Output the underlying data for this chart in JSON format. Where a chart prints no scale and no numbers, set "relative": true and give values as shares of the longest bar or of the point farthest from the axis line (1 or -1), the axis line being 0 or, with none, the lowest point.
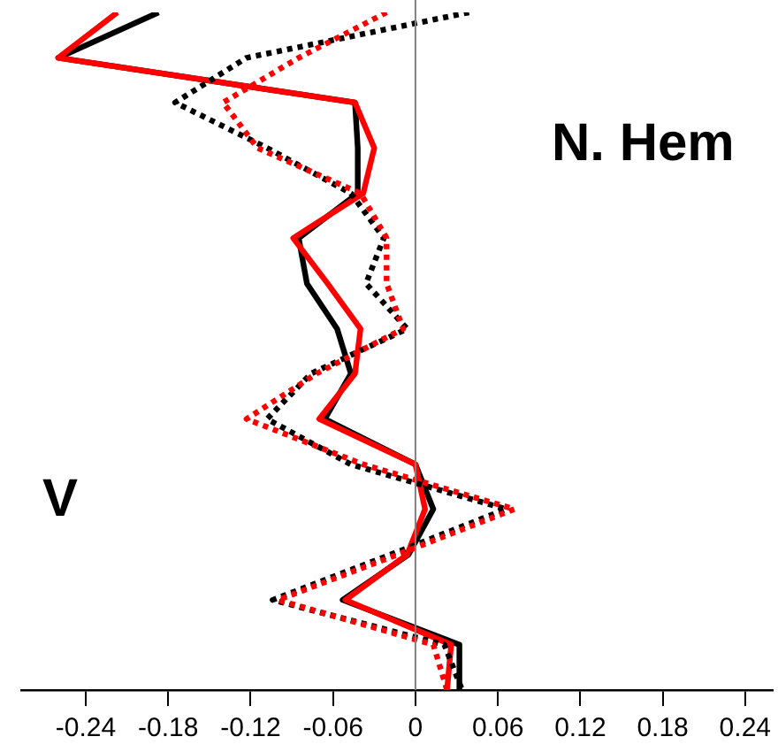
{
  "chart_data": {
    "type": "line",
    "relative": true,
    "xlim": [
      -0.287,
      0.26
    ],
    "xticks": [
      -0.24,
      -0.18,
      -0.12,
      -0.06,
      0,
      0.06,
      0.12,
      0.18,
      0.24
    ],
    "ref_lines": [
      {
        "axis": "x",
        "value": 0,
        "color": "#808080"
      }
    ],
    "annotations": [
      "N. Hem",
      "V"
    ],
    "series": [
      {
        "color": "#ff0000",
        "line_style": "dotted",
        "x": [
          -0.021,
          -0.085,
          -0.14,
          -0.115,
          -0.04,
          -0.021,
          -0.021,
          -0.009,
          -0.072,
          -0.123,
          -0.038,
          0.072,
          -0.013,
          -0.1,
          0.013,
          0.023
        ],
        "values": [
          1,
          0.933,
          0.867,
          0.8,
          0.733,
          0.667,
          0.6,
          0.533,
          0.467,
          0.4,
          0.333,
          0.267,
          0.2,
          0.133,
          0.067,
          0
        ]
      },
      {
        "color": "#000000",
        "line_style": "dotted",
        "x": [
          0.039,
          -0.123,
          -0.175,
          -0.108,
          -0.047,
          -0.023,
          -0.036,
          -0.006,
          -0.076,
          -0.108,
          -0.047,
          0.066,
          -0.018,
          -0.104,
          0.021,
          0.034
        ],
        "values": [
          1,
          0.933,
          0.867,
          0.8,
          0.733,
          0.667,
          0.6,
          0.533,
          0.467,
          0.4,
          0.333,
          0.267,
          0.2,
          0.133,
          0.067,
          0
        ]
      },
      {
        "color": "#ff0000",
        "line_style": "solid",
        "x": [
          -0.217,
          -0.26,
          -0.044,
          -0.03,
          -0.038,
          -0.089,
          -0.064,
          -0.04,
          -0.044,
          -0.07,
          0.0,
          0.007,
          -0.006,
          -0.051,
          0.026,
          0.023
        ],
        "values": [
          1,
          0.933,
          0.867,
          0.8,
          0.733,
          0.667,
          0.6,
          0.533,
          0.467,
          0.4,
          0.333,
          0.267,
          0.2,
          0.133,
          0.067,
          0
        ]
      },
      {
        "color": "#000000",
        "line_style": "solid",
        "x": [
          -0.187,
          -0.26,
          -0.044,
          -0.042,
          -0.042,
          -0.085,
          -0.079,
          -0.057,
          -0.047,
          -0.066,
          0.0,
          0.013,
          -0.005,
          -0.053,
          0.032,
          0.032
        ],
        "values": [
          1,
          0.933,
          0.867,
          0.8,
          0.733,
          0.667,
          0.6,
          0.533,
          0.467,
          0.4,
          0.333,
          0.267,
          0.2,
          0.133,
          0.067,
          0
        ]
      }
    ]
  }
}
